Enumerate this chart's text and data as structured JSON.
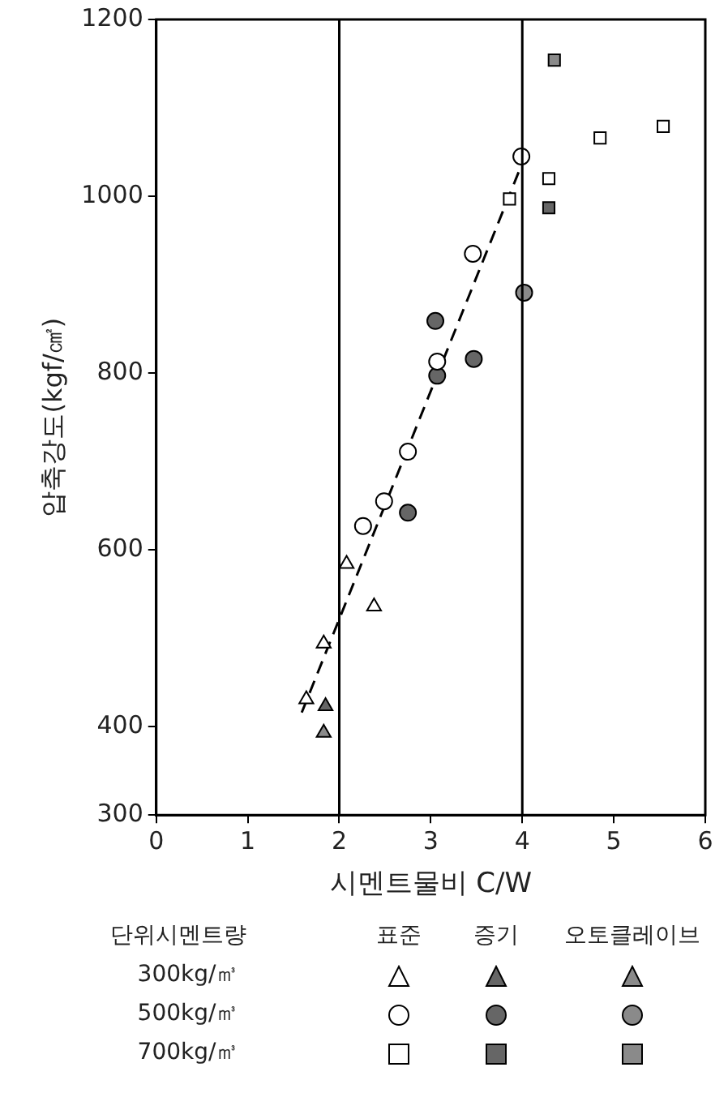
{
  "chart_data": {
    "type": "scatter",
    "xlabel": "시멘트물비 C/W",
    "ylabel": "압축강도(kgf/㎠)",
    "xlim": [
      0,
      6
    ],
    "xticks": [
      0,
      1,
      2,
      3,
      4,
      5,
      6
    ],
    "ylim": [
      300,
      1200
    ],
    "yticks": [
      300,
      400,
      600,
      800,
      1000,
      1200
    ],
    "grid": false,
    "legend": false,
    "annotations": [
      "단위시멘트량",
      "표준",
      "증기",
      "오토클레이브",
      "300kg/㎥",
      "500kg/㎥",
      "700kg/㎥"
    ],
    "ref_lines": [
      {
        "axis": "x",
        "value": 2,
        "color": "#000000"
      },
      {
        "axis": "x",
        "value": 4,
        "color": "#000000"
      }
    ],
    "series": [
      {
        "marker": "triangle",
        "color": "#ffffff",
        "x": [
          1.64,
          1.83,
          2.08,
          2.38
        ],
        "values": [
          431,
          494,
          584,
          536
        ]
      },
      {
        "marker": "circle",
        "color": "#ffffff",
        "x": [
          2.26,
          2.49,
          2.75,
          3.07,
          3.46,
          3.99
        ],
        "values": [
          627,
          655,
          711,
          813,
          935,
          1045
        ]
      },
      {
        "marker": "square",
        "color": "#ffffff",
        "x": [
          3.86,
          4.29,
          4.85,
          5.54
        ],
        "values": [
          997,
          1020,
          1066,
          1079
        ]
      },
      {
        "marker": "triangle",
        "color": "#666666",
        "x": [
          1.85
        ],
        "values": [
          423
        ]
      },
      {
        "marker": "circle",
        "color": "#666666",
        "x": [
          2.75,
          3.05,
          3.07,
          3.47
        ],
        "values": [
          642,
          859,
          797,
          816
        ]
      },
      {
        "marker": "square",
        "color": "#666666",
        "x": [
          4.29
        ],
        "values": [
          987
        ]
      },
      {
        "marker": "triangle",
        "color": "#8a8a8a",
        "x": [
          1.83
        ],
        "values": [
          393
        ]
      },
      {
        "marker": "circle",
        "color": "#8a8a8a",
        "x": [
          4.02
        ],
        "values": [
          891
        ]
      },
      {
        "marker": "square",
        "color": "#8a8a8a",
        "x": [
          4.35
        ],
        "values": [
          1154
        ]
      },
      {
        "type": "line",
        "marker": "none",
        "line_style": "dashed",
        "color": "#000000",
        "x": [
          1.59,
          3.99
        ],
        "values": [
          416,
          1035
        ]
      }
    ]
  }
}
